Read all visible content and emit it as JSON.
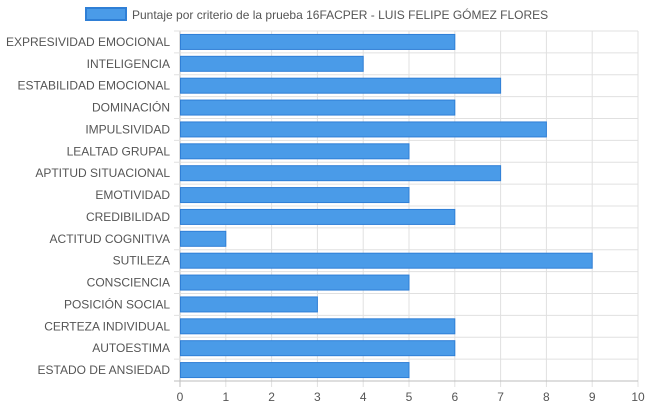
{
  "chart_data": {
    "type": "bar",
    "orientation": "horizontal",
    "title": "",
    "xlabel": "",
    "ylabel": "",
    "categories": [
      "EXPRESIVIDAD EMOCIONAL",
      "INTELIGENCIA",
      "ESTABILIDAD EMOCIONAL",
      "DOMINACIÓN",
      "IMPULSIVIDAD",
      "LEALTAD GRUPAL",
      "APTITUD SITUACIONAL",
      "EMOTIVIDAD",
      "CREDIBILIDAD",
      "ACTITUD COGNITIVA",
      "SUTILEZA",
      "CONSCIENCIA",
      "POSICIÓN SOCIAL",
      "CERTEZA INDIVIDUAL",
      "AUTOESTIMA",
      "ESTADO DE ANSIEDAD"
    ],
    "series": [
      {
        "name": "Puntaje por criterio de la prueba 16FACPER - LUIS FELIPE GÓMEZ FLORES",
        "values": [
          6,
          4,
          7,
          6,
          8,
          5,
          7,
          5,
          6,
          1,
          9,
          5,
          3,
          6,
          6,
          5
        ],
        "color": "#4a9be8",
        "border_color": "#2f7fd6"
      }
    ],
    "xlim": [
      0,
      10
    ],
    "xticks": [
      0,
      1,
      2,
      3,
      4,
      5,
      6,
      7,
      8,
      9,
      10
    ],
    "grid": true,
    "legend_position": "top"
  },
  "colors": {
    "grid": "#e0e0e0",
    "axis": "#bdbdbd",
    "text": "#555555"
  }
}
